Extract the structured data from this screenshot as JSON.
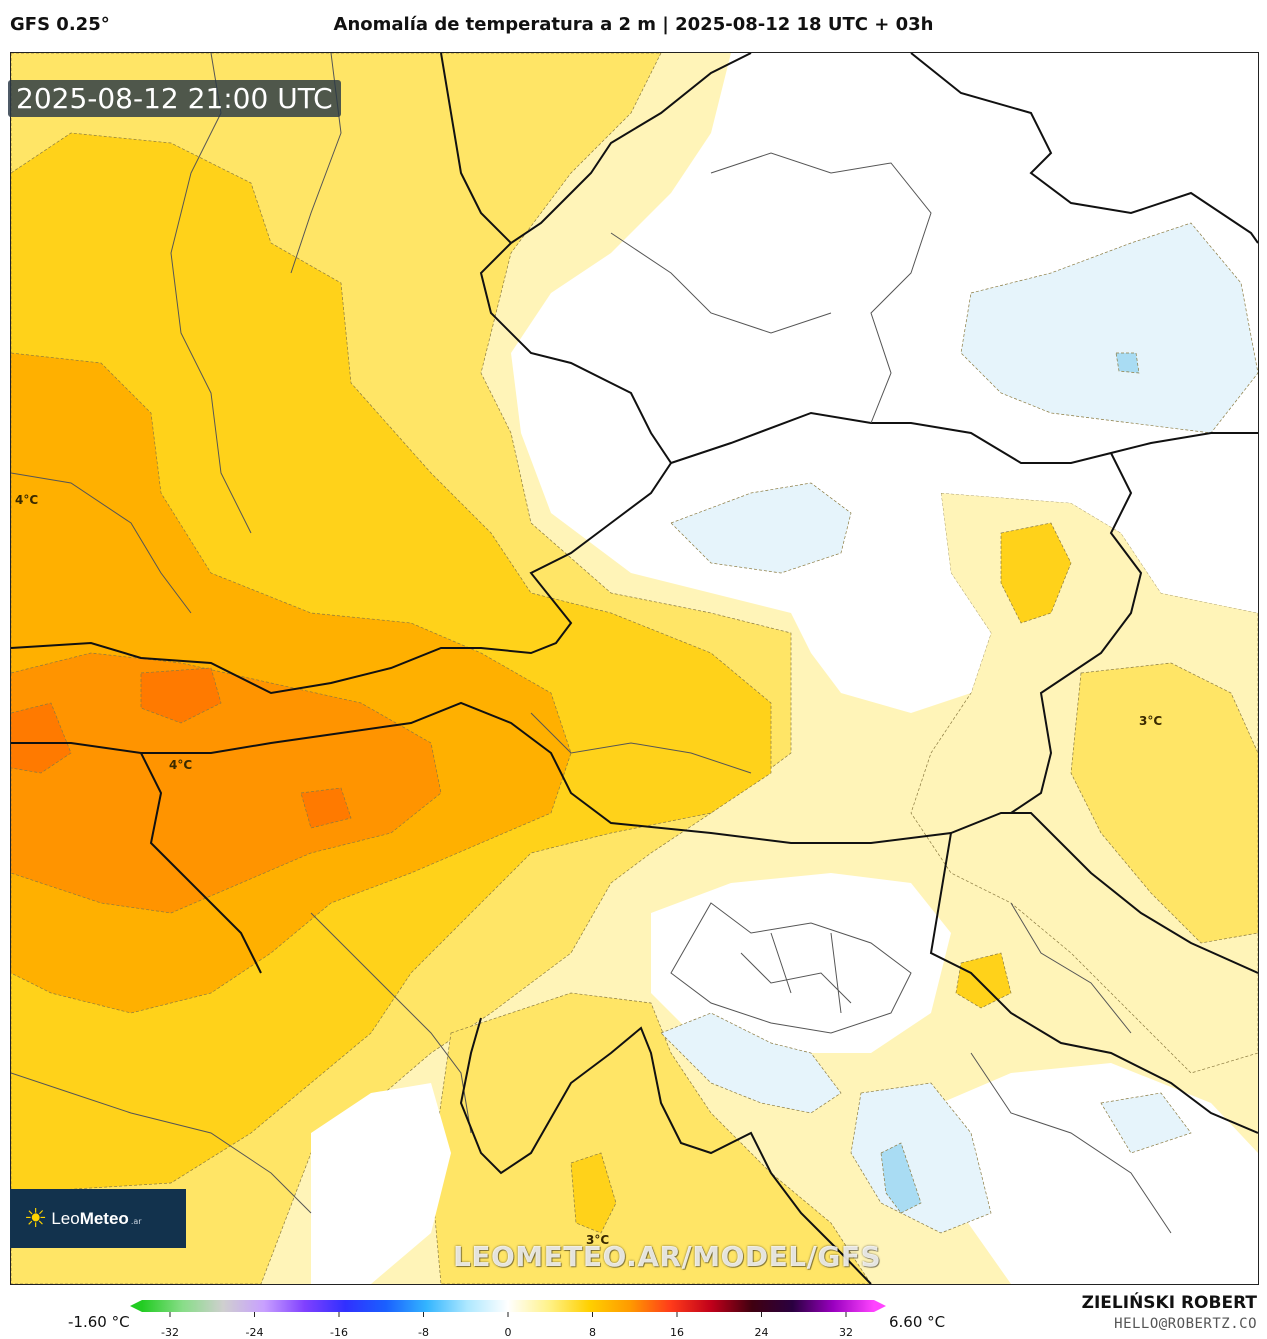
{
  "header": {
    "model": "GFS 0.25°",
    "title": "Anomalía de temperatura a 2 m | 2025-08-12 18 UTC + 03h"
  },
  "map": {
    "timestamp": "2025-08-12 21:00 UTC",
    "contour_labels": [
      "4°C",
      "4°C",
      "3°C",
      "3°C"
    ],
    "watermark": "LEOMETEO.AR/MODEL/GFS",
    "colors": {
      "cold_light": "#e6f4fb",
      "cold": "#a9dcf3",
      "zero": "#ffffff",
      "warm_1": "#fff4b8",
      "warm_2": "#ffe566",
      "warm_3": "#ffd21a",
      "warm_4": "#ffb000",
      "warm_5": "#ff9400",
      "warm_6": "#ff7a00",
      "border": "#111111",
      "region": "#555555"
    }
  },
  "logo": {
    "icon": "sun-icon",
    "name_light": "Leo",
    "name_bold": "Meteo",
    "suffix": ".ar"
  },
  "colorbar": {
    "min_label": "-1.60 °C",
    "max_label": "6.60 °C",
    "ticks": [
      "-32",
      "-24",
      "-16",
      "-8",
      "0",
      "8",
      "16",
      "24",
      "32"
    ],
    "stops": [
      "#22cc22",
      "#88dd88",
      "#cfcfcf",
      "#c8a0ff",
      "#8040ff",
      "#3030ff",
      "#1a60ff",
      "#33b5ff",
      "#aee8ff",
      "#ffffff",
      "#fff28a",
      "#ffd000",
      "#ff9a00",
      "#ff3b1a",
      "#c0001a",
      "#400010",
      "#2a0040",
      "#9a00c0",
      "#ff44ff"
    ]
  },
  "credit": {
    "author": "ZIELIŃSKI ROBERT",
    "email": "HELLO@ROBERTZ.CO"
  }
}
